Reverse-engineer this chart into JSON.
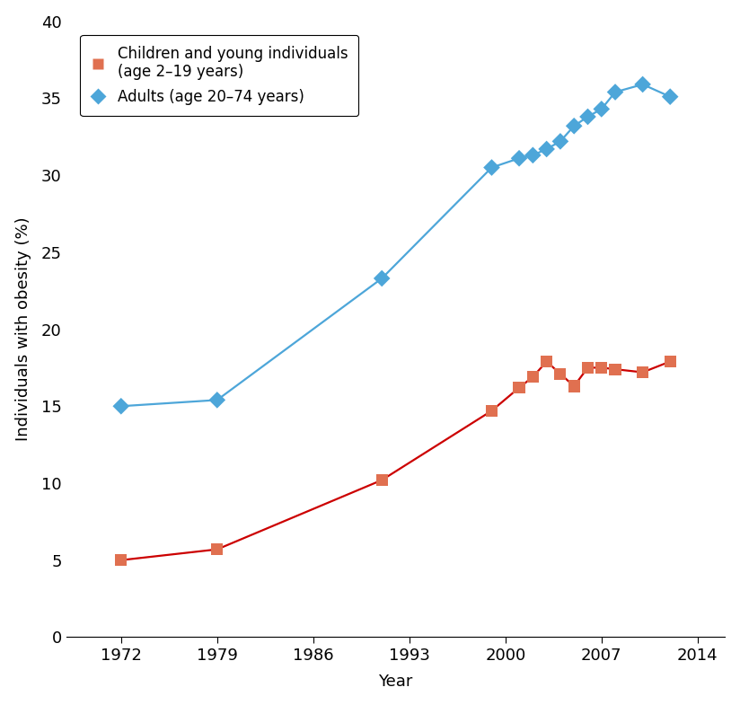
{
  "adults_x": [
    1972,
    1979,
    1991,
    1999,
    2001,
    2002,
    2003,
    2004,
    2005,
    2006,
    2007,
    2008,
    2010,
    2012
  ],
  "adults_y": [
    15.0,
    15.4,
    23.3,
    30.5,
    31.1,
    31.3,
    31.7,
    32.2,
    33.2,
    33.8,
    34.3,
    35.4,
    35.9,
    35.1
  ],
  "children_x": [
    1972,
    1979,
    1991,
    1999,
    2001,
    2002,
    2003,
    2004,
    2005,
    2006,
    2007,
    2008,
    2010,
    2012
  ],
  "children_y": [
    5.0,
    5.7,
    10.2,
    14.7,
    16.2,
    16.9,
    17.9,
    17.1,
    16.3,
    17.5,
    17.5,
    17.4,
    17.2,
    17.9
  ],
  "adults_marker_color": "#4da6d9",
  "adults_line_color": "#4da6d9",
  "children_marker_color": "#e07050",
  "children_line_color": "#cc0000",
  "xlabel": "Year",
  "ylabel": "Individuals with obesity (%)",
  "xlim": [
    1968,
    2016
  ],
  "ylim": [
    0,
    40
  ],
  "xticks": [
    1972,
    1979,
    1986,
    1993,
    2000,
    2007,
    2014
  ],
  "yticks": [
    0,
    5,
    10,
    15,
    20,
    25,
    30,
    35,
    40
  ],
  "legend_adults": "Adults (age 20–74 years)",
  "legend_children": "Children and young individuals\n(age 2–19 years)",
  "background_color": "#ffffff",
  "marker_size": 90,
  "linewidth": 1.6,
  "tick_fontsize": 13,
  "label_fontsize": 13,
  "legend_fontsize": 12
}
